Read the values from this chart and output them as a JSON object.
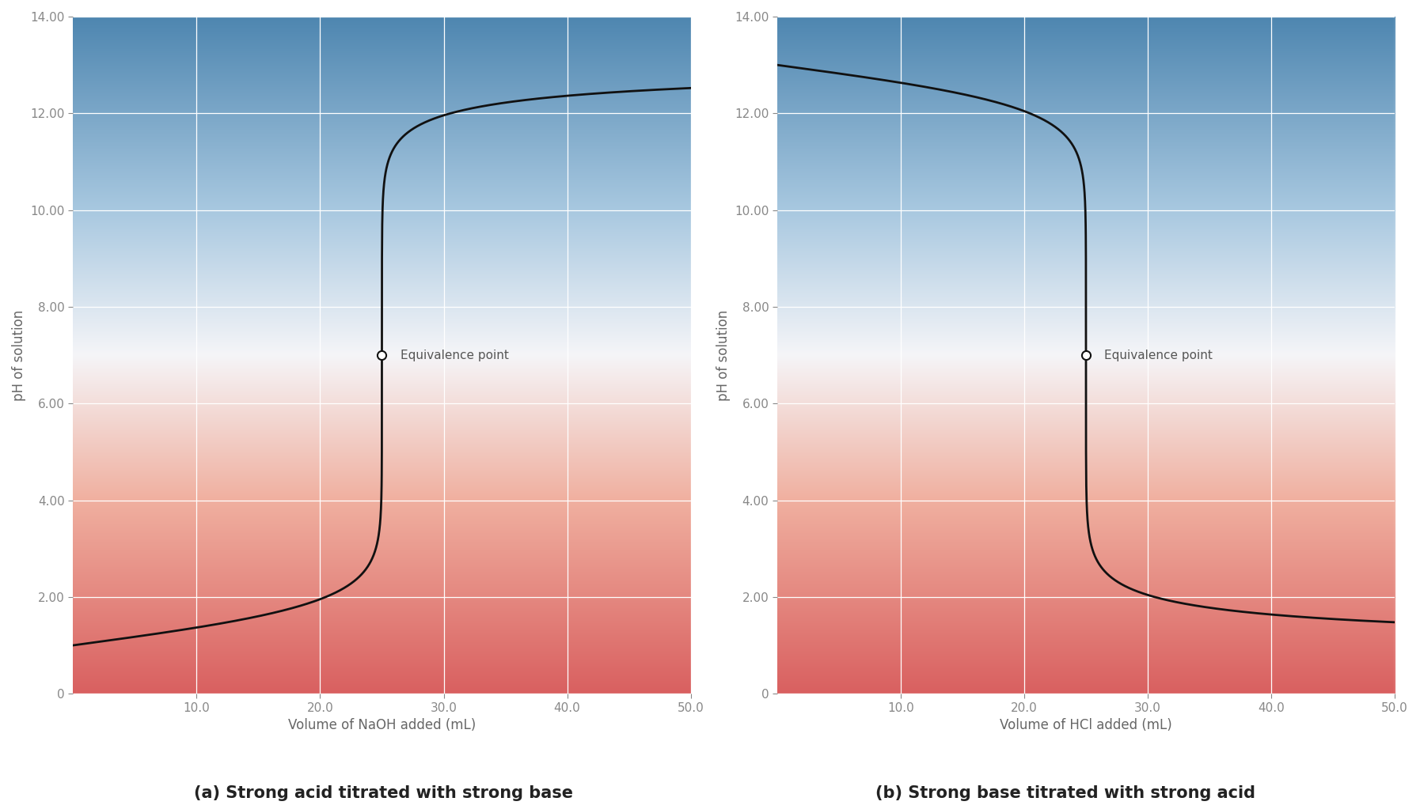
{
  "fig_width": 17.94,
  "fig_height": 10.23,
  "dpi": 100,
  "subplot_a": {
    "title": "(a) Strong acid titrated with strong base",
    "xlabel": "Volume of NaOH added (mL)",
    "ylabel": "pH of solution",
    "xlim": [
      0,
      50
    ],
    "ylim": [
      0,
      14
    ],
    "yticks": [
      0,
      2.0,
      4.0,
      6.0,
      8.0,
      10.0,
      12.0,
      14.0
    ],
    "xticks": [
      10.0,
      20.0,
      30.0,
      40.0,
      50.0
    ],
    "equivalence_x": 25.0,
    "equivalence_y": 7.0,
    "eq_label": "Equivalence point",
    "inflection_x": 25.0
  },
  "subplot_b": {
    "title": "(b) Strong base titrated with strong acid",
    "xlabel": "Volume of HCl added (mL)",
    "ylabel": "pH of solution",
    "xlim": [
      0,
      50
    ],
    "ylim": [
      0,
      14
    ],
    "yticks": [
      0,
      2.0,
      4.0,
      6.0,
      8.0,
      10.0,
      12.0,
      14.0
    ],
    "xticks": [
      10.0,
      20.0,
      30.0,
      40.0,
      50.0
    ],
    "equivalence_x": 25.0,
    "equivalence_y": 7.0,
    "eq_label": "Equivalence point",
    "inflection_x": 25.0
  },
  "bg_color_top": "#4e86b0",
  "bg_color_mid_top": "#a8c8e0",
  "bg_color_white": "#f5f5f8",
  "bg_color_mid_bot": "#f0b0a0",
  "bg_color_bottom": "#d96060",
  "curve_color": "#111111",
  "curve_linewidth": 2.0,
  "grid_color": "#ffffff",
  "grid_linewidth": 0.9,
  "tick_color": "#888888",
  "label_color": "#666666",
  "subtitle_fontsize": 15,
  "axis_label_fontsize": 12,
  "tick_fontsize": 11,
  "eq_label_fontsize": 11,
  "eq_label_color": "#555555",
  "fig_background": "#ffffff"
}
